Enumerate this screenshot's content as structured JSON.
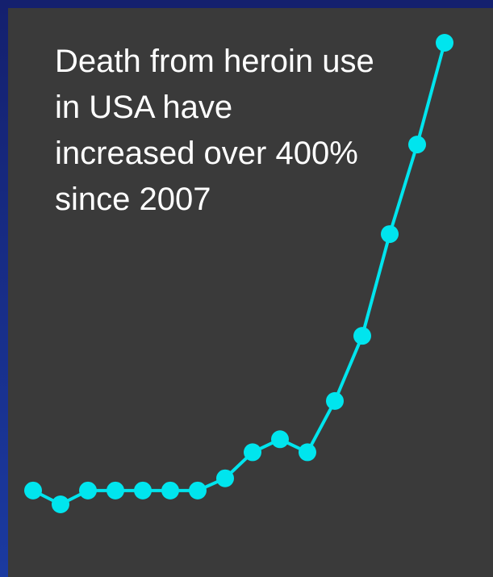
{
  "chart_data": {
    "type": "line",
    "annotation": "Death from heroin use in USA have increased over 400% since 2007",
    "series": [
      {
        "color": "#00e5ee",
        "values": [
          2000,
          1660,
          2000,
          2000,
          2000,
          2000,
          2000,
          2300,
          2940,
          3260,
          2940,
          4200,
          5800,
          8300,
          10500,
          13000
        ]
      }
    ]
  }
}
